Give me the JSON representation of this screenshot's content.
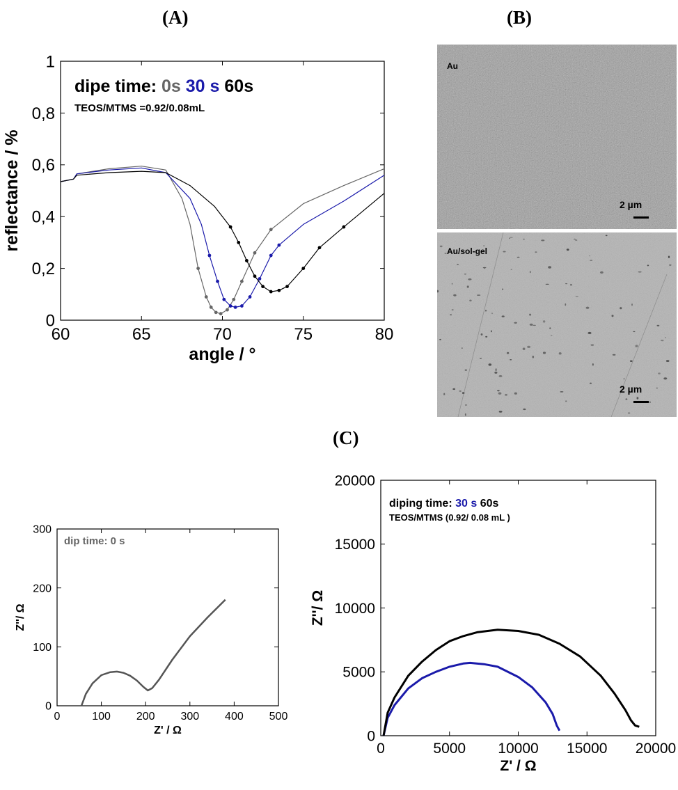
{
  "panels": {
    "a": "(A)",
    "b": "(B)",
    "c": "(C)"
  },
  "sem": {
    "top_label": "Au",
    "bottom_label": "Au/sol-gel",
    "scale_top": "2 µm",
    "scale_bottom": "2 µm"
  },
  "chart_data": [
    {
      "type": "line",
      "xlabel": "angle / °",
      "ylabel": "reflectance / %",
      "xlim": [
        60,
        80
      ],
      "ylim": [
        0,
        1
      ],
      "xticks": [
        "60",
        "65",
        "70",
        "75",
        "80"
      ],
      "yticks": [
        "0",
        "0,2",
        "0,4",
        "0,6",
        "0,8",
        "1"
      ],
      "title_parts": [
        {
          "text": "dipe time: ",
          "color": "#000000"
        },
        {
          "text": "0s",
          "color": "#666666"
        },
        {
          "text": " 30 s",
          "color": "#1a1aaa"
        },
        {
          "text": " 60s",
          "color": "#000000"
        }
      ],
      "subtitle": "TEOS/MTMS =0.92/0.08mL",
      "series": [
        {
          "color": "#666666",
          "x": [
            60,
            60.8,
            61,
            63,
            65,
            66.5,
            67.5,
            68,
            68.5,
            69,
            69.3,
            69.6,
            69.9,
            70.3,
            70.7,
            71.2,
            72,
            73,
            75,
            77.5,
            80
          ],
          "y": [
            0.535,
            0.545,
            0.565,
            0.585,
            0.595,
            0.58,
            0.47,
            0.37,
            0.2,
            0.09,
            0.05,
            0.03,
            0.025,
            0.04,
            0.08,
            0.15,
            0.26,
            0.35,
            0.45,
            0.52,
            0.585
          ]
        },
        {
          "color": "#1a1aaa",
          "x": [
            60,
            60.8,
            61,
            63,
            65,
            66.5,
            68,
            68.7,
            69.2,
            69.7,
            70.1,
            70.5,
            70.8,
            71.2,
            71.7,
            72.3,
            73,
            73.5,
            75,
            77.5,
            80
          ],
          "y": [
            0.535,
            0.545,
            0.565,
            0.58,
            0.588,
            0.57,
            0.47,
            0.37,
            0.25,
            0.15,
            0.08,
            0.055,
            0.05,
            0.055,
            0.09,
            0.16,
            0.25,
            0.29,
            0.37,
            0.46,
            0.56
          ]
        },
        {
          "color": "#000000",
          "x": [
            60,
            60.8,
            61,
            63,
            65,
            66.5,
            68,
            69.5,
            70.5,
            71,
            71.5,
            72,
            72.5,
            73,
            73.5,
            74,
            75,
            76,
            77.5,
            80
          ],
          "y": [
            0.535,
            0.545,
            0.56,
            0.57,
            0.575,
            0.57,
            0.52,
            0.44,
            0.36,
            0.3,
            0.23,
            0.17,
            0.13,
            0.11,
            0.115,
            0.13,
            0.2,
            0.28,
            0.36,
            0.49
          ]
        }
      ]
    },
    {
      "type": "line",
      "xlabel": "Z' / Ω",
      "ylabel": "Z''/ Ω",
      "xlim": [
        0,
        500
      ],
      "ylim": [
        0,
        300
      ],
      "xticks": [
        "0",
        "100",
        "200",
        "300",
        "400",
        "500"
      ],
      "yticks": [
        "0",
        "100",
        "200",
        "300"
      ],
      "annotation": "dip time: 0 s",
      "series": [
        {
          "color": "#555555",
          "x": [
            55,
            65,
            80,
            100,
            120,
            135,
            150,
            165,
            180,
            195,
            205,
            215,
            230,
            260,
            300,
            340,
            380
          ],
          "y": [
            0,
            20,
            38,
            52,
            57,
            58,
            56,
            51,
            43,
            32,
            26,
            30,
            44,
            78,
            118,
            150,
            180
          ]
        }
      ]
    },
    {
      "type": "line",
      "xlabel": "Z' / Ω",
      "ylabel": "Z''/ Ω",
      "xlim": [
        0,
        20000
      ],
      "ylim": [
        0,
        20000
      ],
      "xticks": [
        "0",
        "5000",
        "10000",
        "15000",
        "20000"
      ],
      "yticks": [
        "0",
        "5000",
        "10000",
        "15000",
        "20000"
      ],
      "title_parts": [
        {
          "text": "diping time: ",
          "color": "#000000"
        },
        {
          "text": "30 s",
          "color": "#1a1aaa"
        },
        {
          "text": " 60s",
          "color": "#000000"
        }
      ],
      "subtitle": "TEOS/MTMS (0.92/ 0.08 mL )",
      "series": [
        {
          "color": "#1a1aaa",
          "x": [
            200,
            500,
            1000,
            2000,
            3000,
            4000,
            5000,
            6000,
            6500,
            7500,
            8500,
            10000,
            11000,
            12000,
            12500,
            12800,
            13000
          ],
          "y": [
            0,
            1400,
            2400,
            3700,
            4500,
            5000,
            5400,
            5650,
            5700,
            5600,
            5400,
            4600,
            3800,
            2600,
            1700,
            800,
            400
          ]
        },
        {
          "color": "#000000",
          "x": [
            200,
            500,
            1000,
            2000,
            3000,
            4000,
            5000,
            6000,
            7000,
            8500,
            10000,
            11500,
            13000,
            14500,
            16000,
            17000,
            17800,
            18200,
            18500,
            18800
          ],
          "y": [
            0,
            1800,
            3000,
            4700,
            5800,
            6700,
            7400,
            7800,
            8100,
            8300,
            8200,
            7900,
            7200,
            6200,
            4700,
            3300,
            2000,
            1200,
            800,
            700
          ]
        }
      ]
    }
  ]
}
